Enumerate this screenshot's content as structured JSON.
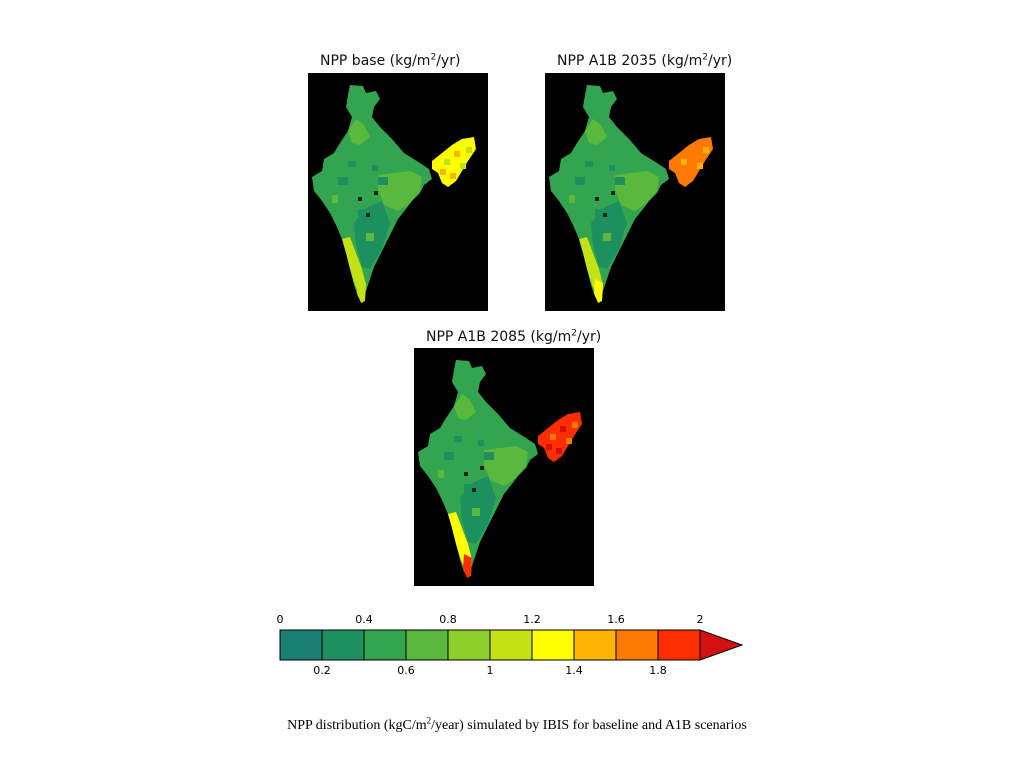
{
  "panels": [
    {
      "id": "base",
      "title_prefix": "NPP base (kg/m",
      "title_sup": "2",
      "title_suffix": "/yr)",
      "northeast_level": 1.3,
      "coast_level": 1.1,
      "tip_level": 1.2
    },
    {
      "id": "a1b2035",
      "title_prefix": "NPP A1B 2035 (kg/m",
      "title_sup": "2",
      "title_suffix": "/yr)",
      "northeast_level": 1.6,
      "coast_level": 1.1,
      "tip_level": 1.3
    },
    {
      "id": "a1b2085",
      "title_prefix": "NPP A1B 2085 (kg/m",
      "title_sup": "2",
      "title_suffix": "/yr)",
      "northeast_level": 1.9,
      "coast_level": 1.3,
      "tip_level": 1.9
    }
  ],
  "colorbar": {
    "min": 0,
    "max": 2,
    "step": 0.2,
    "colors": [
      "#187f72",
      "#1e9060",
      "#33a550",
      "#5ab93c",
      "#8ccf2a",
      "#c3e115",
      "#ffff00",
      "#ffb400",
      "#ff7a00",
      "#ff2e00",
      "#d41010"
    ],
    "top_labels": [
      "0",
      "0.4",
      "0.8",
      "1.2",
      "1.6",
      "2"
    ],
    "bottom_labels": [
      "0.2",
      "0.6",
      "1",
      "1.4",
      "1.8"
    ]
  },
  "caption": {
    "prefix": "NPP distribution (kgC/m",
    "sup": "2",
    "suffix": "/year) simulated by IBIS for baseline and A1B scenarios"
  }
}
